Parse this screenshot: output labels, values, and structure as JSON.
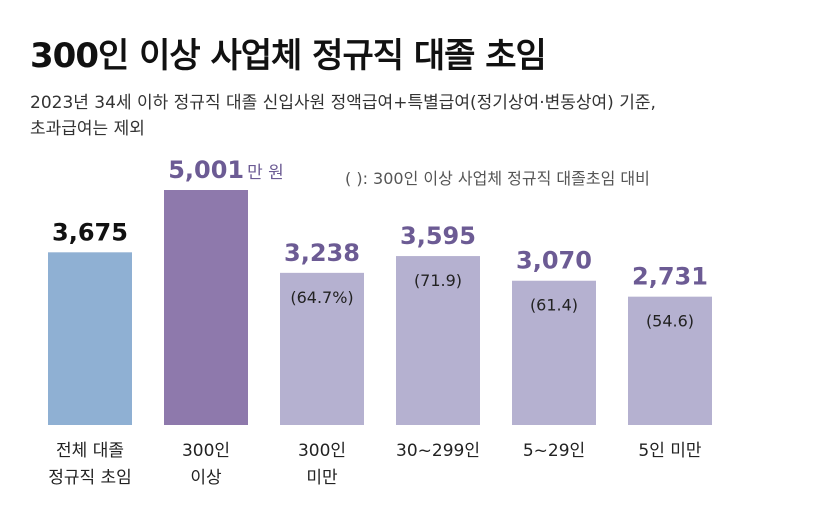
{
  "title": "300인 이상 사업체 정규직 대졸 초임",
  "subtitle_line1": "2023년 34세 이하 정규직 대졸 신입사원 정액급여+특별급여(정기상여·변동상여) 기준,",
  "subtitle_line2": "초과급여는 제외",
  "note": "( ): 300인 이상 사업체 정규직 대졸초임 대비",
  "chart_data": {
    "type": "bar",
    "unit": "만 원",
    "categories": [
      [
        "전체 대졸",
        "정규직 초임"
      ],
      [
        "300인",
        "이상"
      ],
      [
        "300인",
        "미만"
      ],
      [
        "30~299인"
      ],
      [
        "5~29인"
      ],
      [
        "5인 미만"
      ]
    ],
    "values": [
      3675,
      5001,
      3238,
      3595,
      3070,
      2731
    ],
    "value_labels": [
      "3,675",
      "5,001",
      "3,238",
      "3,595",
      "3,070",
      "2,731"
    ],
    "unit_suffix": [
      "",
      "만 원",
      "",
      "",
      "",
      ""
    ],
    "ratio_labels": [
      "",
      "",
      "(64.7%)",
      "(71.9)",
      "(61.4)",
      "(54.6)"
    ],
    "colors": {
      "total": "#8fb0d3",
      "large": "#8e79ac",
      "other": "#b5b1d0",
      "large_label": "#6c5b94",
      "other_label": "#6c5b94",
      "total_label": "#111111"
    }
  }
}
